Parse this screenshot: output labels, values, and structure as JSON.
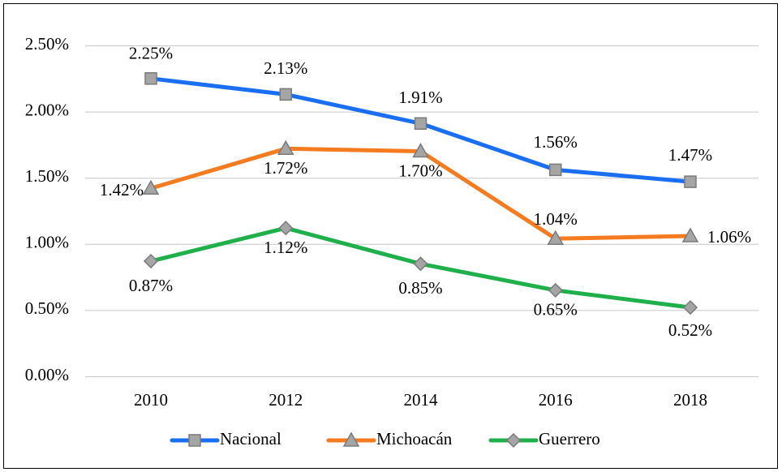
{
  "chart_data": {
    "type": "line",
    "categories": [
      "2010",
      "2012",
      "2014",
      "2016",
      "2018"
    ],
    "series": [
      {
        "name": "Nacional",
        "color": "#1a6ef2",
        "marker": "square",
        "values": [
          2.25,
          2.13,
          1.91,
          1.56,
          1.47
        ],
        "value_labels": [
          "2.25%",
          "2.13%",
          "1.91%",
          "1.56%",
          "1.47%"
        ]
      },
      {
        "name": "Michoacán",
        "color": "#f47b20",
        "marker": "triangle",
        "values": [
          1.42,
          1.72,
          1.7,
          1.04,
          1.06
        ],
        "value_labels": [
          "1.42%",
          "1.72%",
          "1.70%",
          "1.04%",
          "1.06%"
        ]
      },
      {
        "name": "Guerrero",
        "color": "#20b04b",
        "marker": "diamond",
        "values": [
          0.87,
          1.12,
          0.85,
          0.65,
          0.52
        ],
        "value_labels": [
          "0.87%",
          "1.12%",
          "0.85%",
          "0.65%",
          "0.52%"
        ]
      }
    ],
    "ylim": [
      0,
      2.5
    ],
    "yticks": [
      {
        "value": 0,
        "label": "0.00%"
      },
      {
        "value": 0.5,
        "label": "0.50%"
      },
      {
        "value": 1,
        "label": "1.00%"
      },
      {
        "value": 1.5,
        "label": "1.50%"
      },
      {
        "value": 2,
        "label": "2.00%"
      },
      {
        "value": 2.5,
        "label": "2.50%"
      }
    ],
    "grid": true,
    "legend": "bottom"
  }
}
